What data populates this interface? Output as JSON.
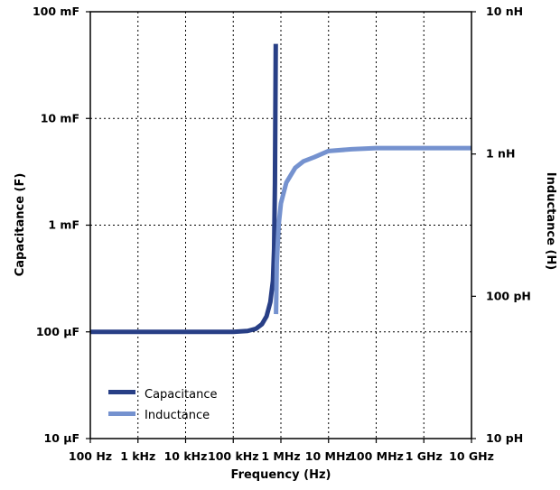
{
  "chart_data": {
    "type": "line",
    "title": "",
    "xlabel": "Frequency (Hz)",
    "ylabel_left": "Capacitance (F)",
    "ylabel_right": "Inductance (H)",
    "x_scale": "log",
    "xlim": [
      100,
      10000000000
    ],
    "x_ticks": [
      {
        "value": 100,
        "label": "100 Hz"
      },
      {
        "value": 1000,
        "label": "1 kHz"
      },
      {
        "value": 10000,
        "label": "10 kHz"
      },
      {
        "value": 100000,
        "label": "100 kHz"
      },
      {
        "value": 1000000,
        "label": "1 MHz"
      },
      {
        "value": 10000000,
        "label": "10 MHz"
      },
      {
        "value": 100000000,
        "label": "100 MHz"
      },
      {
        "value": 1000000000,
        "label": "1 GHz"
      },
      {
        "value": 10000000000,
        "label": "10 GHz"
      }
    ],
    "y_left_scale": "log",
    "y_left_lim": [
      1e-05,
      0.1
    ],
    "y_left_ticks": [
      {
        "value": 1e-05,
        "label": "10 µF"
      },
      {
        "value": 0.0001,
        "label": "100 µF"
      },
      {
        "value": 0.001,
        "label": "1 mF"
      },
      {
        "value": 0.01,
        "label": "10 mF"
      },
      {
        "value": 0.1,
        "label": "100 mF"
      }
    ],
    "y_right_scale": "log",
    "y_right_lim": [
      1e-11,
      1e-08
    ],
    "y_right_ticks": [
      {
        "value": 1e-11,
        "label": "10 pH"
      },
      {
        "value": 1e-10,
        "label": "100 pH"
      },
      {
        "value": 1e-09,
        "label": "1 nH"
      },
      {
        "value": 1e-08,
        "label": "10 nH"
      }
    ],
    "grid": true,
    "legend_position": "bottom-left",
    "series": [
      {
        "name": "Capacitance",
        "axis": "left",
        "color": "#283f86",
        "points": [
          [
            100,
            0.0001
          ],
          [
            1000,
            0.0001
          ],
          [
            10000,
            0.0001
          ],
          [
            100000,
            0.0001
          ],
          [
            200000,
            0.000102
          ],
          [
            300000,
            0.000107
          ],
          [
            400000,
            0.000118
          ],
          [
            500000,
            0.00014
          ],
          [
            600000,
            0.00019
          ],
          [
            680000,
            0.0003
          ],
          [
            720000,
            0.0006
          ],
          [
            750000,
            0.0025
          ],
          [
            780000,
            0.05
          ]
        ]
      },
      {
        "name": "Inductance",
        "axis": "right",
        "color": "#7592cf",
        "points": [
          [
            790000,
            7.5e-11
          ],
          [
            820000,
            1.7e-10
          ],
          [
            900000,
            3.2e-10
          ],
          [
            1000000,
            4.5e-10
          ],
          [
            1300000,
            6.3e-10
          ],
          [
            2000000,
            8e-10
          ],
          [
            3000000,
            8.9e-10
          ],
          [
            5000000,
            9.5e-10
          ],
          [
            10000000,
            1.05e-09
          ],
          [
            30000000,
            1.08e-09
          ],
          [
            100000000,
            1.1e-09
          ],
          [
            1000000000,
            1.1e-09
          ],
          [
            10000000000,
            1.1e-09
          ]
        ]
      }
    ]
  }
}
